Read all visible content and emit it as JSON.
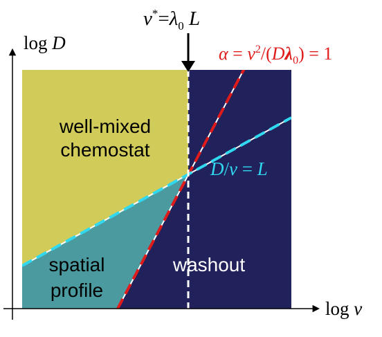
{
  "axes": {
    "x_label": "log v",
    "y_label": "log D"
  },
  "regions": {
    "well_mixed": [
      "well-mixed",
      "chemostat"
    ],
    "spatial": [
      "spatial",
      "profile"
    ],
    "washout": "washout"
  },
  "annotations": {
    "critical_velocity": "v* = λ0 L",
    "alpha_line": "α = v²/(D λ0) = 1",
    "length_line": "D/v = L"
  },
  "colors": {
    "well_mixed": "#d1cc5a",
    "spatial": "#4b9aa0",
    "washout": "#21215b",
    "alpha_line": "#e01b1b",
    "length_line": "#31d9f0",
    "critical_line": "#ffffff"
  }
}
